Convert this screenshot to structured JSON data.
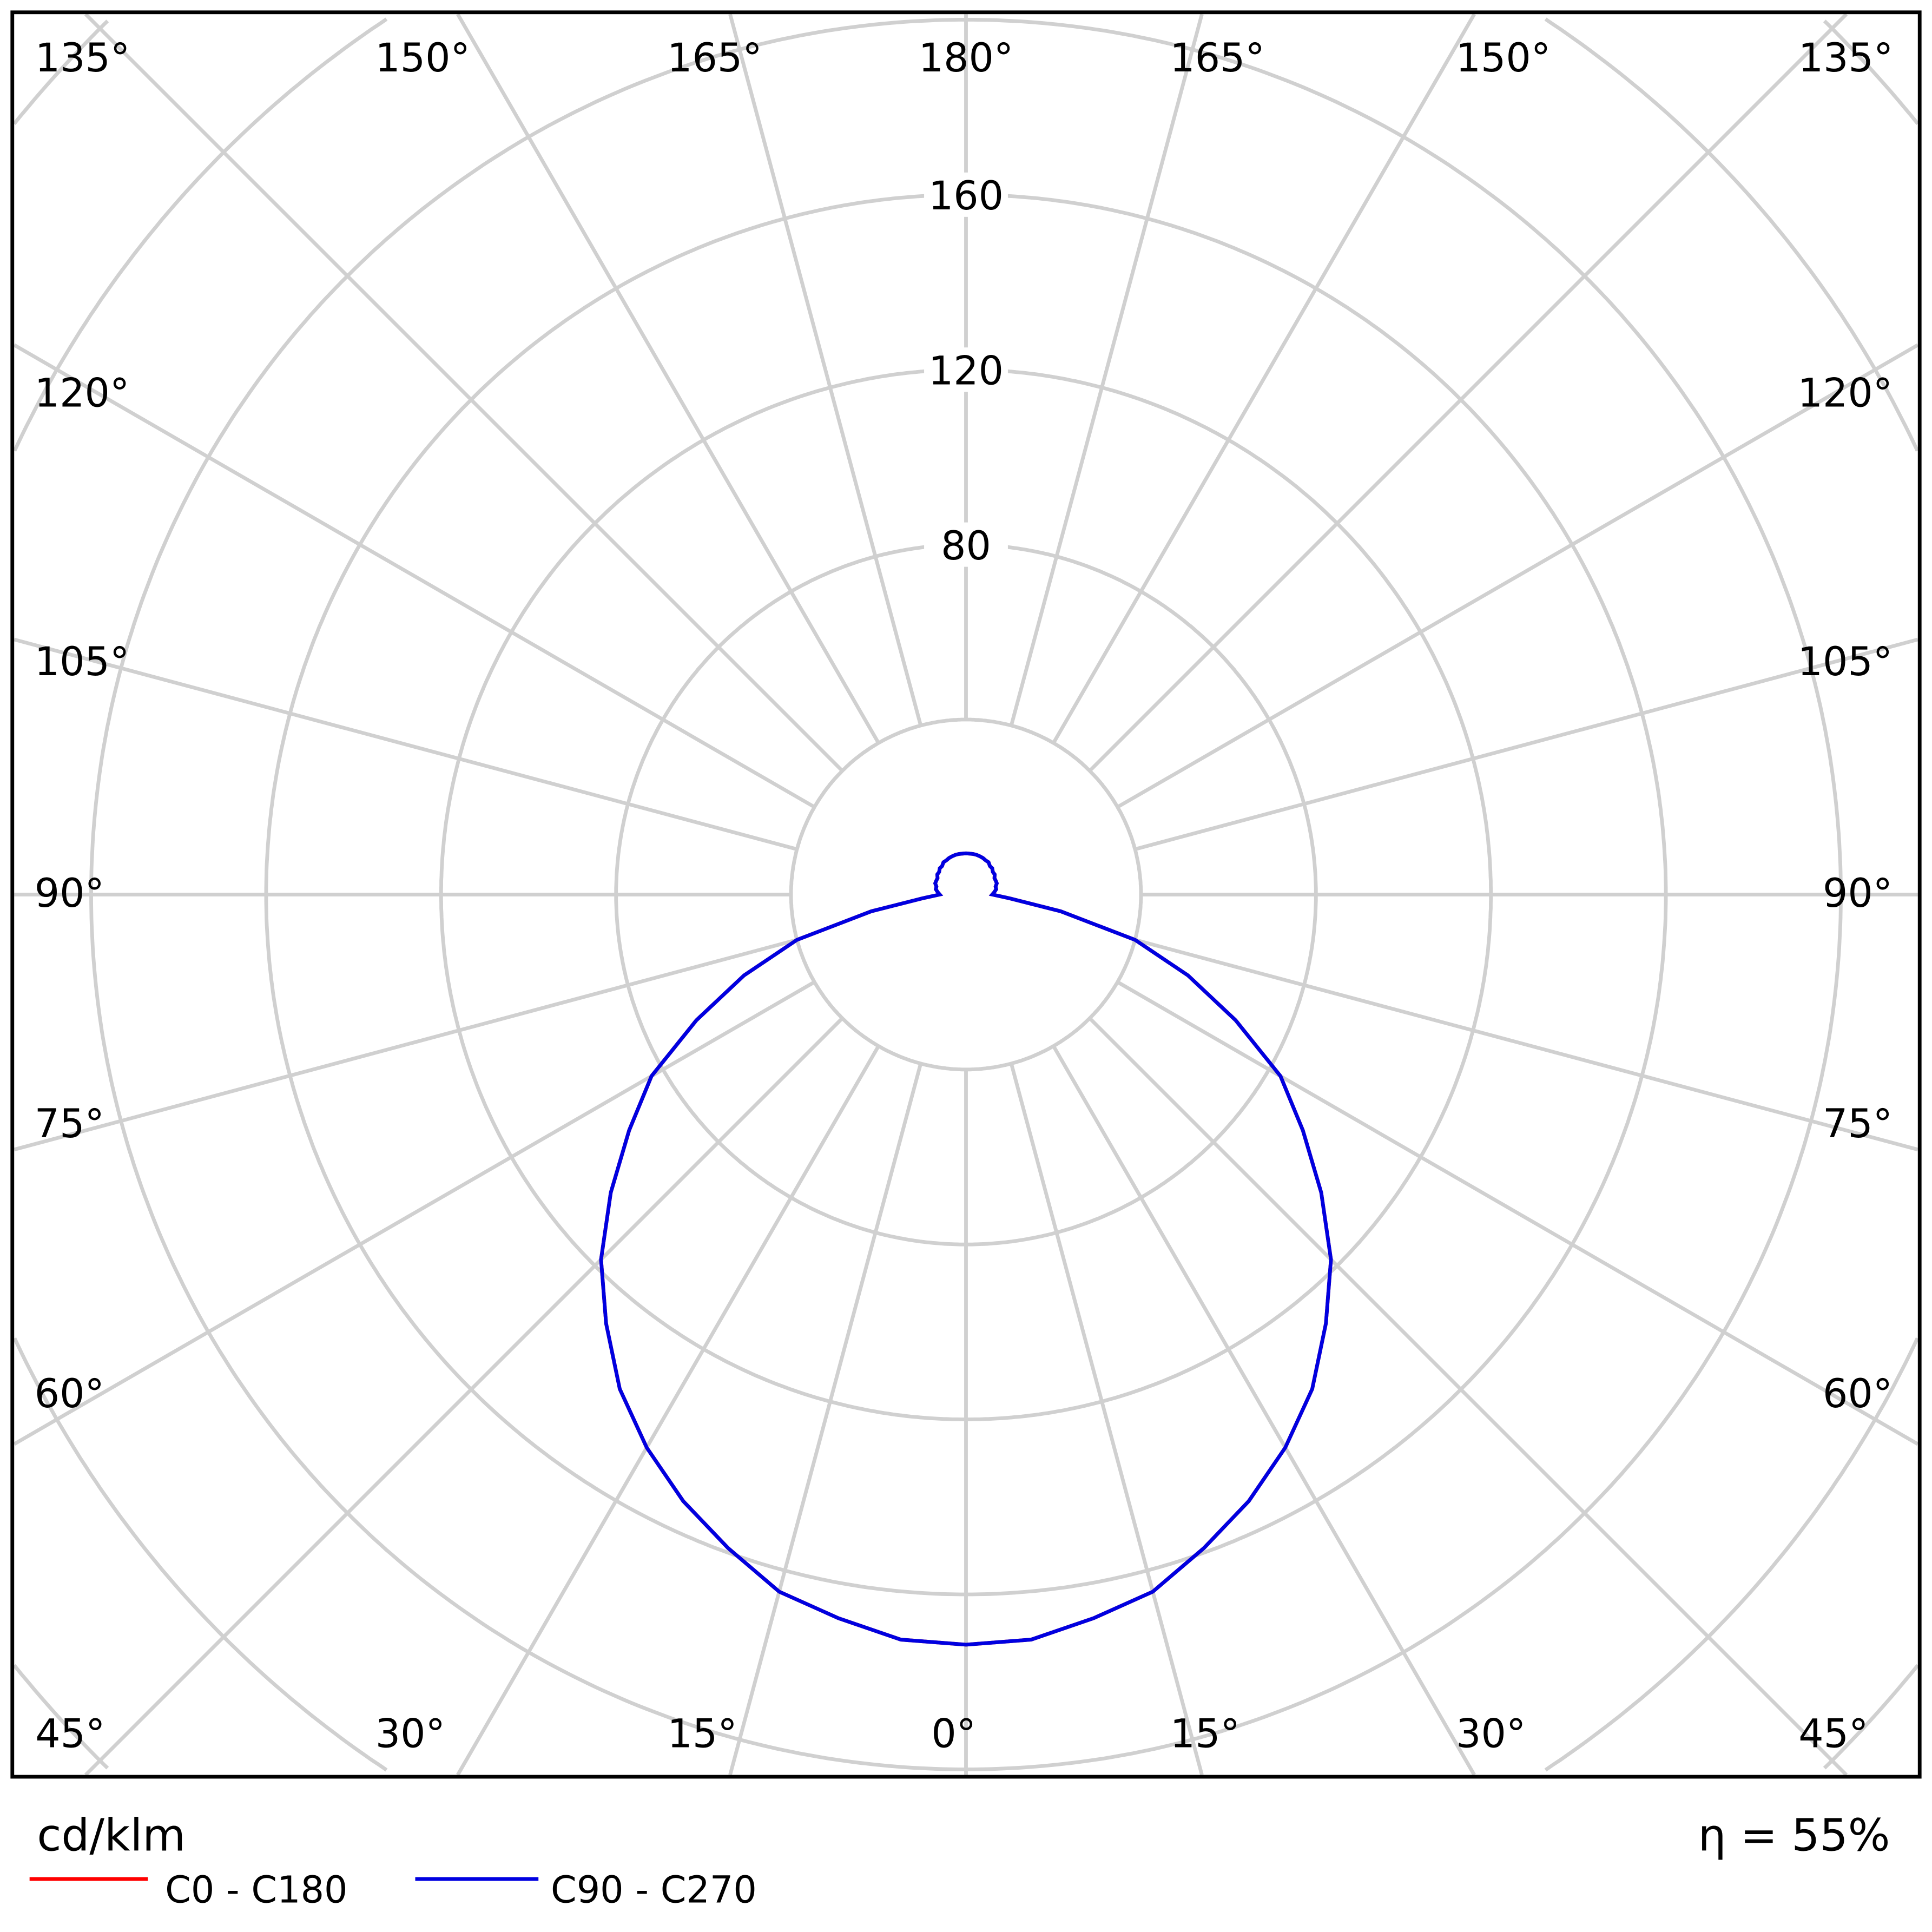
{
  "chart_data": {
    "type": "polar",
    "unit_label": "cd/klm",
    "efficiency_label": "η = 55%",
    "radial_ticks": [
      40,
      80,
      120,
      160,
      200,
      240,
      280,
      320
    ],
    "radial_tick_labels": [
      "80",
      "120",
      "160"
    ],
    "angle_labels": {
      "top": [
        "135°",
        "150°",
        "165°",
        "180°",
        "165°",
        "150°",
        "135°"
      ],
      "left": [
        "120°",
        "105°",
        "90°",
        "75°",
        "60°"
      ],
      "right": [
        "120°",
        "105°",
        "90°",
        "75°",
        "60°"
      ],
      "bottom": [
        "45°",
        "30°",
        "15°",
        "0°",
        "15°",
        "30°",
        "45°"
      ]
    },
    "grid": true,
    "gamma": [
      0,
      5,
      10,
      15,
      20,
      25,
      30,
      35,
      40,
      45,
      50,
      55,
      60,
      65,
      70,
      75,
      80,
      85,
      90,
      95,
      100,
      105,
      110,
      115,
      120,
      125,
      130,
      135,
      140,
      145,
      150,
      155,
      160,
      165,
      170,
      175,
      180
    ],
    "series": [
      {
        "name": "C0 - C180",
        "color": "#ff0000",
        "values": [
          171.5,
          171,
          168,
          165,
          159,
          153,
          146,
          138,
          128,
          118,
          106,
          94,
          83,
          68,
          54,
          40,
          22,
          10,
          6,
          6.5,
          7,
          7,
          7.5,
          7.5,
          7.5,
          8,
          8,
          8.5,
          8.5,
          9,
          9,
          9.2,
          9.3,
          9.4,
          9.4,
          9.4,
          9.4
        ]
      },
      {
        "name": "C90 - C270",
        "color": "#0000e0",
        "values": [
          171.5,
          171,
          168,
          165,
          159,
          153,
          146,
          138,
          128,
          118,
          106,
          94,
          83,
          68,
          54,
          40,
          22,
          10,
          6,
          6.5,
          7,
          7,
          7.5,
          7.5,
          7.5,
          8,
          8,
          8.5,
          8.5,
          9,
          9,
          9.2,
          9.3,
          9.4,
          9.4,
          9.4,
          9.4
        ]
      }
    ],
    "legend_placement": "bottom-left"
  }
}
